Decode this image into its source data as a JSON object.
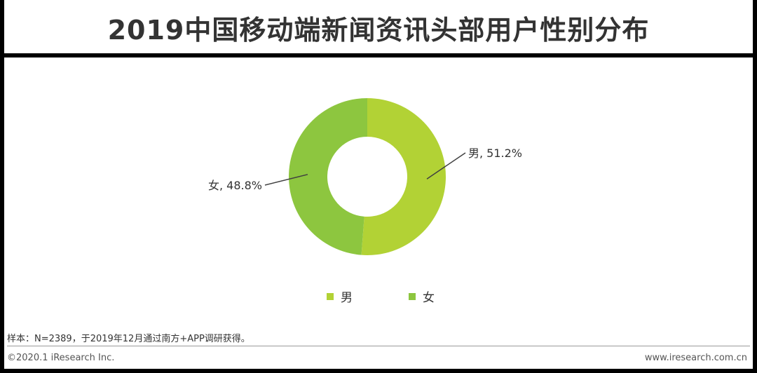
{
  "title": "2019中国移动端新闻资讯头部用户性别分布",
  "chart_data": {
    "type": "pie",
    "donut": true,
    "title": "2019中国移动端新闻资讯头部用户性别分布",
    "categories": [
      "男",
      "女"
    ],
    "values": [
      51.2,
      48.8
    ],
    "unit": "%",
    "data_labels": [
      "男, 51.2%",
      "女, 48.8%"
    ],
    "colors": [
      "#b2d235",
      "#8dc63f"
    ],
    "legend": {
      "position": "bottom",
      "entries": [
        "男",
        "女"
      ]
    }
  },
  "footer": {
    "note": "样本：N=2389，于2019年12月通过南方+APP调研获得。",
    "copyright": "©2020.1 iResearch Inc.",
    "website": "www.iresearch.com.cn"
  }
}
